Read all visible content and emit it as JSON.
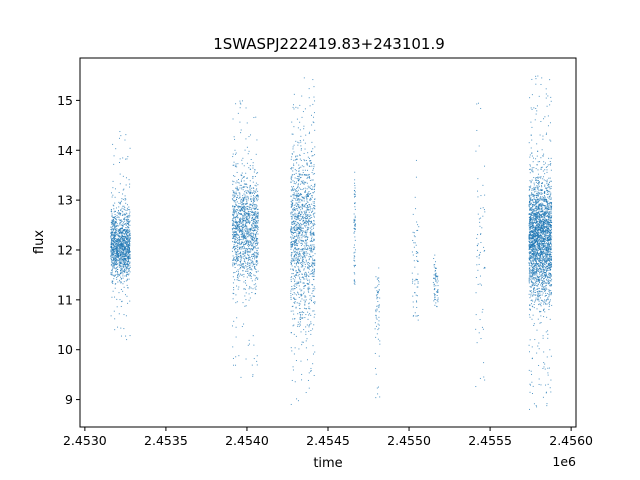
{
  "chart_data": {
    "type": "scatter",
    "title": "1SWASPJ222419.83+243101.9",
    "xlabel": "time",
    "ylabel": "flux",
    "x_offset_label": "1e6",
    "x_scale": 1000000,
    "xlim": [
      2.45297,
      2.45603
    ],
    "ylim": [
      8.45,
      15.85
    ],
    "x_ticks": [
      2.453,
      2.4535,
      2.454,
      2.4545,
      2.455,
      2.4555,
      2.456
    ],
    "x_tick_labels": [
      "2.4530",
      "2.4535",
      "2.4540",
      "2.4545",
      "2.4550",
      "2.4555",
      "2.4560"
    ],
    "y_ticks": [
      9,
      10,
      11,
      12,
      13,
      14,
      15
    ],
    "y_tick_labels": [
      "9",
      "10",
      "11",
      "12",
      "13",
      "14",
      "15"
    ],
    "grid": false,
    "legend": false,
    "marker_color": "#1f77b4",
    "observing_seasons": [
      {
        "x_start": 2.45316,
        "x_end": 2.45328,
        "flux_center": 12.1,
        "flux_spread": 0.35,
        "flux_min": 10.2,
        "flux_max": 14.4,
        "density": "high"
      },
      {
        "x_start": 2.45391,
        "x_end": 2.45407,
        "flux_center": 12.4,
        "flux_spread": 0.55,
        "flux_min": 9.4,
        "flux_max": 15.0,
        "density": "high"
      },
      {
        "x_start": 2.45427,
        "x_end": 2.45442,
        "flux_center": 12.3,
        "flux_spread": 0.9,
        "flux_min": 8.9,
        "flux_max": 15.5,
        "density": "high"
      },
      {
        "x_start": 2.45466,
        "x_end": 2.45467,
        "flux_center": 12.3,
        "flux_spread": 0.6,
        "flux_min": 11.3,
        "flux_max": 13.7,
        "density": "sparse"
      },
      {
        "x_start": 2.45479,
        "x_end": 2.45482,
        "flux_center": 10.9,
        "flux_spread": 0.6,
        "flux_min": 8.9,
        "flux_max": 11.8,
        "density": "sparse"
      },
      {
        "x_start": 2.45502,
        "x_end": 2.45506,
        "flux_center": 11.5,
        "flux_spread": 0.8,
        "flux_min": 10.5,
        "flux_max": 13.9,
        "density": "sparse"
      },
      {
        "x_start": 2.45515,
        "x_end": 2.45518,
        "flux_center": 11.3,
        "flux_spread": 0.3,
        "flux_min": 10.8,
        "flux_max": 11.9,
        "density": "sparse"
      },
      {
        "x_start": 2.45541,
        "x_end": 2.45547,
        "flux_center": 11.8,
        "flux_spread": 1.1,
        "flux_min": 9.0,
        "flux_max": 15.0,
        "density": "sparse"
      },
      {
        "x_start": 2.45574,
        "x_end": 2.45588,
        "flux_center": 12.2,
        "flux_spread": 0.6,
        "flux_min": 8.8,
        "flux_max": 15.5,
        "density": "very-high"
      }
    ]
  }
}
